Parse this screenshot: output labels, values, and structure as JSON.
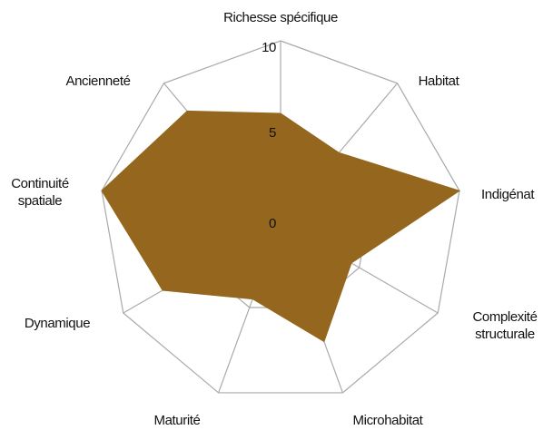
{
  "chart_data": {
    "type": "radar",
    "categories": [
      [
        "Richesse spécifique"
      ],
      [
        "Habitat"
      ],
      [
        "Indigénat"
      ],
      [
        "Complexité",
        "structurale"
      ],
      [
        "Microhabitat"
      ],
      [
        "Maturité"
      ],
      [
        "Dynamique"
      ],
      [
        "Continuité",
        "spatiale"
      ],
      [
        "Ancienneté"
      ]
    ],
    "values": [
      6,
      5,
      10,
      4.5,
      7,
      4.5,
      7.5,
      10,
      8
    ],
    "color": "#94661e",
    "ylim": [
      0,
      10
    ],
    "yticks": [
      0,
      5,
      10
    ],
    "grid": true
  }
}
